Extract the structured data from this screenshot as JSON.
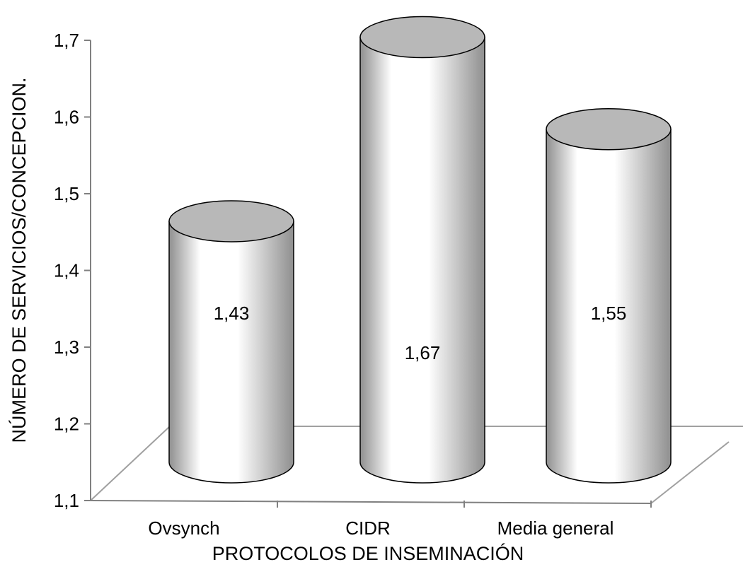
{
  "chart_data": {
    "type": "bar",
    "style": "3d-cylinder",
    "categories": [
      "Ovsynch",
      "CIDR",
      "Media general"
    ],
    "values": [
      1.43,
      1.67,
      1.55
    ],
    "data_labels": [
      "1,43",
      "1,67",
      "1,55"
    ],
    "title": "",
    "xlabel": "PROTOCOLOS DE INSEMINACIÓN",
    "ylabel": "NÚMERO DE SERVICIOS/CONCEPCION.",
    "ylim": [
      1.1,
      1.7
    ],
    "yticks": [
      1.1,
      1.2,
      1.3,
      1.4,
      1.5,
      1.6,
      1.7
    ],
    "ytick_labels": [
      "1,1",
      "1,2",
      "1,3",
      "1,4",
      "1,5",
      "1,6",
      "1,7"
    ],
    "grid": false,
    "legend": "none",
    "colors": {
      "bar_side_light": "#ffffff",
      "bar_side_dark": "#8f8f8f",
      "bar_top": "#b8b8b8",
      "outline": "#000000",
      "floor_line": "#a0a0a0",
      "axis_line": "#808080"
    }
  }
}
